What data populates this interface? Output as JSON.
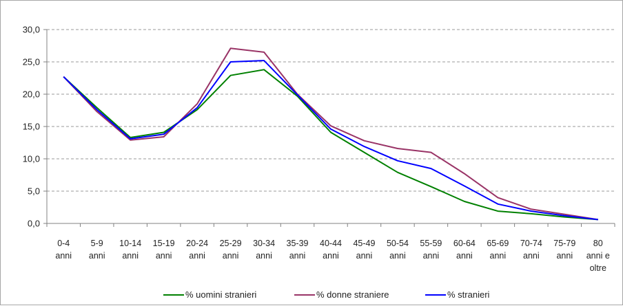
{
  "chart_data": {
    "type": "line",
    "categories": [
      [
        "0-4",
        "anni"
      ],
      [
        "5-9",
        "anni"
      ],
      [
        "10-14",
        "anni"
      ],
      [
        "15-19",
        "anni"
      ],
      [
        "20-24",
        "anni"
      ],
      [
        "25-29",
        "anni"
      ],
      [
        "30-34",
        "anni"
      ],
      [
        "35-39",
        "anni"
      ],
      [
        "40-44",
        "anni"
      ],
      [
        "45-49",
        "anni"
      ],
      [
        "50-54",
        "anni"
      ],
      [
        "55-59",
        "anni"
      ],
      [
        "60-64",
        "anni"
      ],
      [
        "65-69",
        "anni"
      ],
      [
        "70-74",
        "anni"
      ],
      [
        "75-79",
        "anni"
      ],
      [
        "80",
        "anni e",
        "oltre"
      ]
    ],
    "series": [
      {
        "name": "% uomini stranieri",
        "color": "#008000",
        "values": [
          22.7,
          17.9,
          13.3,
          14.1,
          17.6,
          22.9,
          23.8,
          19.7,
          14.1,
          11.0,
          7.9,
          5.7,
          3.4,
          1.9,
          1.5,
          1.0,
          0.6
        ]
      },
      {
        "name": "% donne straniere",
        "color": "#993366",
        "values": [
          22.7,
          17.3,
          12.9,
          13.4,
          18.5,
          27.1,
          26.5,
          20.0,
          15.1,
          12.8,
          11.6,
          11.0,
          7.7,
          4.0,
          2.2,
          1.4,
          0.6
        ]
      },
      {
        "name": "% stranieri",
        "color": "#0000ff",
        "values": [
          22.7,
          17.6,
          13.1,
          13.8,
          17.9,
          25.0,
          25.2,
          19.9,
          14.6,
          11.9,
          9.7,
          8.5,
          5.8,
          3.0,
          1.9,
          1.2,
          0.6
        ]
      }
    ],
    "yticks": [
      "0,0",
      "5,0",
      "10,0",
      "15,0",
      "20,0",
      "25,0",
      "30,0"
    ],
    "ylim": [
      0,
      30
    ],
    "grid": true,
    "legend": "bottom"
  }
}
